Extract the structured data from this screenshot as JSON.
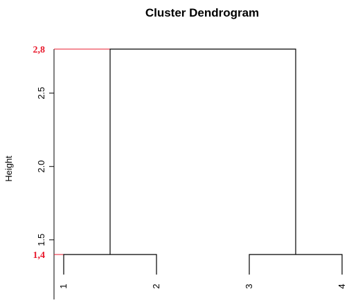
{
  "chart_data": {
    "type": "dendrogram",
    "title": "Cluster Dendrogram",
    "ylabel": "Height",
    "ylim": [
      1.4,
      2.8
    ],
    "y_ticks": [
      1.5,
      2.0,
      2.5
    ],
    "y_tick_labels": [
      "1.5",
      "2.0",
      "2.5"
    ],
    "leaves": [
      "1",
      "2",
      "3",
      "4"
    ],
    "leaf_values": [
      1,
      2,
      3,
      4
    ],
    "merges": [
      {
        "left": 1,
        "right": 2,
        "height": 1.4
      },
      {
        "left": 3,
        "right": 4,
        "height": 1.4
      },
      {
        "left": 1.5,
        "right": 3.5,
        "height": 2.8
      }
    ],
    "annotations": [
      {
        "label": "2,8",
        "value": 2.8,
        "color": "#e8192c"
      },
      {
        "label": "1,4",
        "value": 1.4,
        "color": "#e8192c"
      }
    ],
    "line_color": "#000000"
  }
}
